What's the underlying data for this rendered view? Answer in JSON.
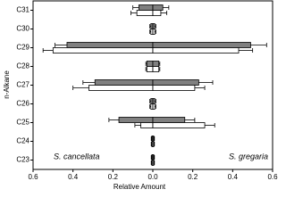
{
  "chart_data": {
    "type": "bar",
    "orientation": "horizontal",
    "ylabel": "n-Alkane",
    "xlabel": "Relative Amount",
    "categories": [
      "C31",
      "C30",
      "C29",
      "C28",
      "C27",
      "C26",
      "C25",
      "C24",
      "C23"
    ],
    "annotations": [
      "S. cancellata",
      "S. gregaria"
    ],
    "xlim": [
      -0.6,
      0.6
    ],
    "xticks": [
      {
        "value": -0.6,
        "label": "0.6"
      },
      {
        "value": -0.4,
        "label": "0.4"
      },
      {
        "value": -0.2,
        "label": "0.2"
      },
      {
        "value": 0,
        "label": "0.0"
      },
      {
        "value": 0.2,
        "label": "0.2"
      },
      {
        "value": 0.4,
        "label": "0.4"
      },
      {
        "value": 0.6,
        "label": "0.6"
      }
    ],
    "series": [
      {
        "color": "#808080",
        "values": [
          -0.07,
          -0.01,
          -0.43,
          -0.03,
          -0.29,
          -0.01,
          -0.17,
          -0.005,
          -0.005
        ],
        "errors": [
          0.03,
          0.005,
          0.06,
          0.005,
          0.06,
          0.005,
          0.05,
          0.003,
          0.003
        ]
      },
      {
        "color": "#ffffff",
        "values": [
          -0.08,
          -0.01,
          -0.5,
          -0.03,
          -0.32,
          -0.01,
          -0.06,
          -0.005,
          -0.005
        ],
        "errors": [
          0.03,
          0.005,
          0.05,
          0.005,
          0.08,
          0.005,
          0.03,
          0.003,
          0.003
        ]
      },
      {
        "color": "#808080",
        "values": [
          0.05,
          0.01,
          0.49,
          0.03,
          0.23,
          0.01,
          0.16,
          0.005,
          0.005
        ],
        "errors": [
          0.03,
          0.005,
          0.08,
          0.005,
          0.07,
          0.005,
          0.05,
          0.003,
          0.003
        ]
      },
      {
        "color": "#ffffff",
        "values": [
          0.04,
          0.01,
          0.43,
          0.03,
          0.21,
          0.01,
          0.26,
          0.005,
          0.005
        ],
        "errors": [
          0.03,
          0.005,
          0.07,
          0.005,
          0.05,
          0.005,
          0.05,
          0.003,
          0.003
        ]
      }
    ]
  }
}
